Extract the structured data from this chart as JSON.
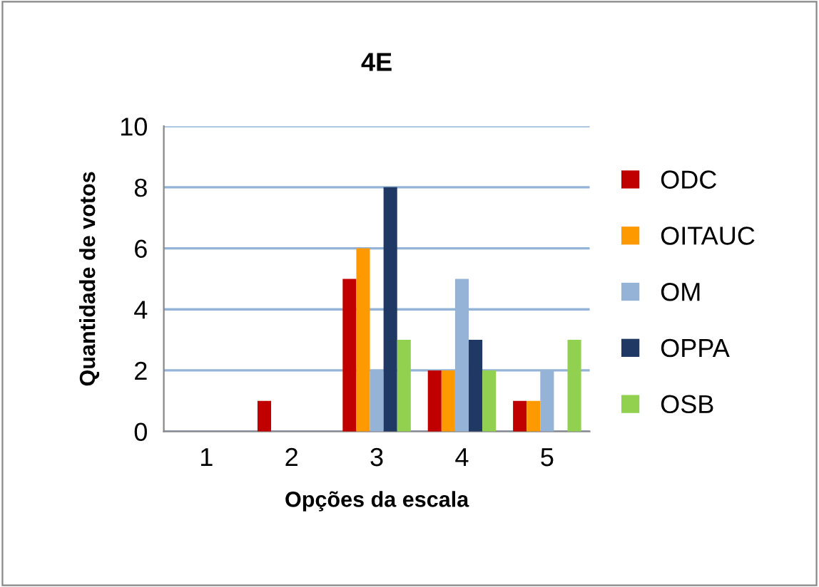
{
  "chart_data": {
    "type": "bar",
    "title": "4E",
    "xlabel": "Opções da escala",
    "ylabel": "Quantidade de votos",
    "categories": [
      "1",
      "2",
      "3",
      "4",
      "5"
    ],
    "series": [
      {
        "name": "ODC",
        "color": "#c00000",
        "values": [
          0,
          1,
          5,
          2,
          1
        ]
      },
      {
        "name": "OITAUC",
        "color": "#ff9900",
        "values": [
          0,
          0,
          6,
          2,
          1
        ]
      },
      {
        "name": "OM",
        "color": "#95b3d7",
        "values": [
          0,
          0,
          2,
          5,
          2
        ]
      },
      {
        "name": "OPPA",
        "color": "#1f3864",
        "values": [
          0,
          0,
          8,
          3,
          0
        ]
      },
      {
        "name": "OSB",
        "color": "#92d050",
        "values": [
          0,
          0,
          3,
          2,
          3
        ]
      }
    ],
    "ylim": [
      0,
      10
    ],
    "yticks": [
      0,
      2,
      4,
      6,
      8,
      10
    ],
    "grid": "y",
    "legend": "right"
  }
}
